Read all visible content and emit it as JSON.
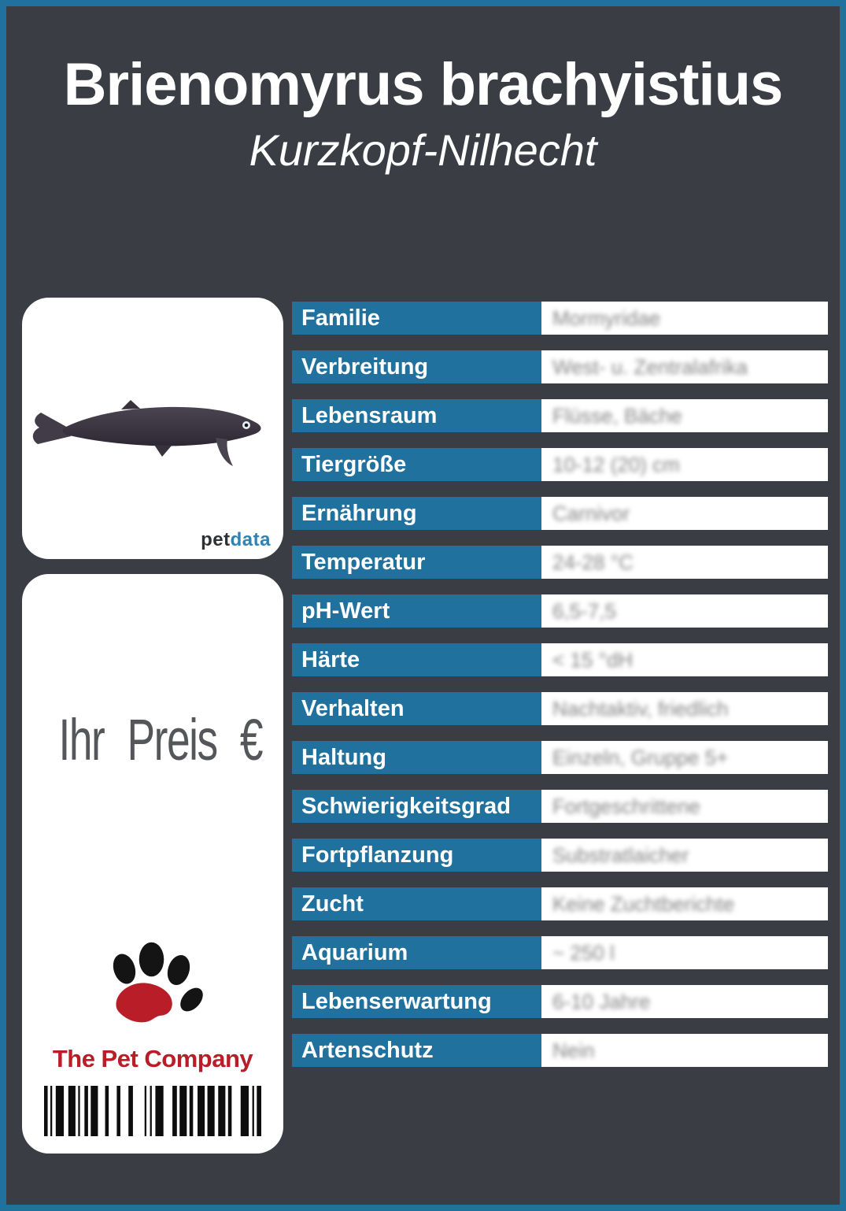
{
  "header": {
    "title": "Brienomyrus brachyistius",
    "subtitle": "Kurzkopf-Nilhecht"
  },
  "photo_card": {
    "brand_pet": "pet",
    "brand_data": "data"
  },
  "price_card": {
    "price_label": "Ihr Preis €",
    "company_name": "The Pet Company"
  },
  "table": {
    "rows": [
      {
        "label": "Familie",
        "value": "Mormyridae"
      },
      {
        "label": "Verbreitung",
        "value": "West- u. Zentralafrika"
      },
      {
        "label": "Lebensraum",
        "value": "Flüsse, Bäche"
      },
      {
        "label": "Tiergröße",
        "value": "10-12 (20) cm"
      },
      {
        "label": "Ernährung",
        "value": "Carnivor"
      },
      {
        "label": "Temperatur",
        "value": "24-28 °C"
      },
      {
        "label": "pH-Wert",
        "value": "6,5-7,5"
      },
      {
        "label": "Härte",
        "value": "< 15 °dH"
      },
      {
        "label": "Verhalten",
        "value": "Nachtaktiv, friedlich"
      },
      {
        "label": "Haltung",
        "value": "Einzeln, Gruppe 5+"
      },
      {
        "label": "Schwierigkeitsgrad",
        "value": "Fortgeschrittene"
      },
      {
        "label": "Fortpflanzung",
        "value": "Substratlaicher"
      },
      {
        "label": "Zucht",
        "value": "Keine Zuchtberichte"
      },
      {
        "label": "Aquarium",
        "value": "~ 250 l"
      },
      {
        "label": "Lebenserwartung",
        "value": "6-10 Jahre"
      },
      {
        "label": "Artenschutz",
        "value": "Nein"
      }
    ]
  },
  "colors": {
    "accent_blue": "#21719e",
    "background_dark": "#3a3d44",
    "brand_red": "#b91d28"
  }
}
